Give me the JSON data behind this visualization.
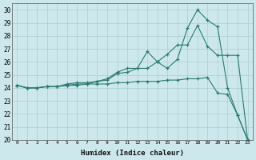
{
  "xlabel": "Humidex (Indice chaleur)",
  "bg_color": "#cde8ed",
  "grid_color": "#aacdd5",
  "line_color": "#2a7a6f",
  "xlim": [
    -0.5,
    23.5
  ],
  "ylim": [
    20,
    30.5
  ],
  "xticks": [
    0,
    1,
    2,
    3,
    4,
    5,
    6,
    7,
    8,
    9,
    10,
    11,
    12,
    13,
    14,
    15,
    16,
    17,
    18,
    19,
    20,
    21,
    22,
    23
  ],
  "yticks": [
    20,
    21,
    22,
    23,
    24,
    25,
    26,
    27,
    28,
    29,
    30
  ],
  "line1_x": [
    0,
    1,
    2,
    3,
    4,
    5,
    6,
    7,
    8,
    9,
    10,
    11,
    12,
    13,
    14,
    15,
    16,
    17,
    18,
    19,
    20,
    21,
    22,
    23
  ],
  "line1_y": [
    24.2,
    24.0,
    24.0,
    24.1,
    24.1,
    24.2,
    24.2,
    24.3,
    24.3,
    24.3,
    24.4,
    24.4,
    24.5,
    24.5,
    24.5,
    24.6,
    24.6,
    24.7,
    24.7,
    24.8,
    23.6,
    23.5,
    21.9,
    20.0
  ],
  "line2_x": [
    0,
    1,
    2,
    3,
    4,
    5,
    6,
    7,
    8,
    9,
    10,
    11,
    12,
    13,
    14,
    15,
    16,
    17,
    18,
    19,
    20,
    21,
    22,
    23
  ],
  "line2_y": [
    24.2,
    24.0,
    24.0,
    24.1,
    24.1,
    24.2,
    24.3,
    24.3,
    24.5,
    24.6,
    25.1,
    25.2,
    25.5,
    25.5,
    26.0,
    26.6,
    27.3,
    27.3,
    28.8,
    27.2,
    26.5,
    26.5,
    26.5,
    20.0
  ],
  "line3_x": [
    0,
    1,
    2,
    3,
    4,
    5,
    6,
    7,
    8,
    9,
    10,
    11,
    12,
    13,
    14,
    15,
    16,
    17,
    18,
    19,
    20,
    21,
    22,
    23
  ],
  "line3_y": [
    24.2,
    24.0,
    24.0,
    24.1,
    24.1,
    24.3,
    24.4,
    24.4,
    24.5,
    24.7,
    25.2,
    25.5,
    25.5,
    26.8,
    26.0,
    25.5,
    26.2,
    28.6,
    30.0,
    29.2,
    28.7,
    24.0,
    21.9,
    20.0
  ]
}
